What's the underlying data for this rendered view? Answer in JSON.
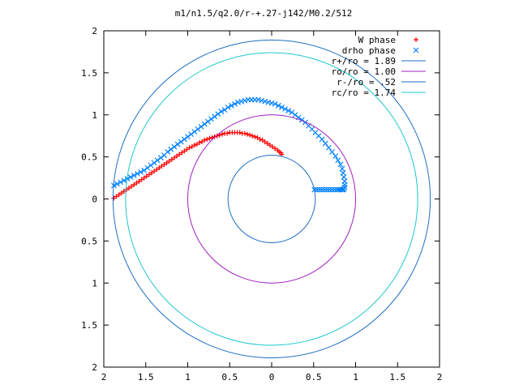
{
  "chart_data": {
    "type": "scatter",
    "title": "m1/n1.5/q2.0/r-+.27-j142/M0.2/512",
    "xlabel": "",
    "ylabel": "",
    "xlim": [
      -2,
      2
    ],
    "ylim": [
      -2,
      2
    ],
    "x_ticks": [
      {
        "value": -2,
        "label": "2"
      },
      {
        "value": -1.5,
        "label": "1.5"
      },
      {
        "value": -1,
        "label": "1"
      },
      {
        "value": -0.5,
        "label": "0.5"
      },
      {
        "value": 0,
        "label": "0"
      },
      {
        "value": 0.5,
        "label": "0.5"
      },
      {
        "value": 1,
        "label": "1"
      },
      {
        "value": 1.5,
        "label": "1.5"
      },
      {
        "value": 2,
        "label": "2"
      }
    ],
    "y_ticks": [
      {
        "value": 2,
        "label": "2"
      },
      {
        "value": 1.5,
        "label": "1.5"
      },
      {
        "value": 1,
        "label": "1"
      },
      {
        "value": 0.5,
        "label": "0.5"
      },
      {
        "value": 0,
        "label": "0"
      },
      {
        "value": -0.5,
        "label": "0.5"
      },
      {
        "value": -1,
        "label": "1"
      },
      {
        "value": -1.5,
        "label": "1.5"
      },
      {
        "value": -2,
        "label": "2"
      }
    ],
    "grid": false,
    "legend_position": "top-right",
    "series": [
      {
        "name": "W phase",
        "kind": "points",
        "marker": "plus",
        "color": "#ff0000",
        "x": [
          -1.88,
          -1.85,
          -1.82,
          -1.79,
          -1.76,
          -1.73,
          -1.7,
          -1.67,
          -1.64,
          -1.61,
          -1.58,
          -1.55,
          -1.52,
          -1.49,
          -1.46,
          -1.43,
          -1.4,
          -1.37,
          -1.34,
          -1.31,
          -1.28,
          -1.25,
          -1.22,
          -1.19,
          -1.16,
          -1.13,
          -1.1,
          -1.07,
          -1.04,
          -1.01,
          -0.98,
          -0.95,
          -0.92,
          -0.89,
          -0.86,
          -0.83,
          -0.8,
          -0.77,
          -0.74,
          -0.71,
          -0.68,
          -0.65,
          -0.62,
          -0.59,
          -0.56,
          -0.53,
          -0.5,
          -0.47,
          -0.44,
          -0.41,
          -0.38,
          -0.35,
          -0.32,
          -0.29,
          -0.26,
          -0.23,
          -0.2,
          -0.17,
          -0.14,
          -0.11,
          -0.08,
          -0.05,
          -0.02,
          0.01,
          0.04,
          0.07,
          0.09,
          0.11,
          0.12
        ],
        "y": [
          0.01,
          0.03,
          0.05,
          0.07,
          0.09,
          0.11,
          0.13,
          0.15,
          0.17,
          0.19,
          0.21,
          0.23,
          0.25,
          0.27,
          0.29,
          0.31,
          0.33,
          0.35,
          0.37,
          0.39,
          0.41,
          0.43,
          0.45,
          0.47,
          0.49,
          0.51,
          0.53,
          0.55,
          0.57,
          0.59,
          0.61,
          0.62,
          0.64,
          0.65,
          0.67,
          0.68,
          0.7,
          0.71,
          0.72,
          0.73,
          0.74,
          0.75,
          0.76,
          0.77,
          0.78,
          0.78,
          0.79,
          0.79,
          0.79,
          0.79,
          0.79,
          0.78,
          0.78,
          0.77,
          0.76,
          0.75,
          0.74,
          0.73,
          0.71,
          0.7,
          0.68,
          0.66,
          0.64,
          0.62,
          0.6,
          0.58,
          0.56,
          0.55,
          0.53
        ]
      },
      {
        "name": "drho phase",
        "kind": "points",
        "marker": "cross",
        "color": "#0080ff",
        "x": [
          -1.88,
          -1.84,
          -1.8,
          -1.76,
          -1.72,
          -1.68,
          -1.64,
          -1.6,
          -1.56,
          -1.52,
          -1.48,
          -1.44,
          -1.4,
          -1.36,
          -1.32,
          -1.28,
          -1.24,
          -1.2,
          -1.16,
          -1.12,
          -1.08,
          -1.04,
          -1.0,
          -0.96,
          -0.92,
          -0.88,
          -0.84,
          -0.8,
          -0.76,
          -0.72,
          -0.68,
          -0.64,
          -0.6,
          -0.56,
          -0.52,
          -0.48,
          -0.44,
          -0.4,
          -0.36,
          -0.32,
          -0.28,
          -0.24,
          -0.2,
          -0.16,
          -0.12,
          -0.08,
          -0.04,
          0.0,
          0.04,
          0.08,
          0.12,
          0.16,
          0.2,
          0.24,
          0.28,
          0.32,
          0.36,
          0.4,
          0.44,
          0.48,
          0.52,
          0.56,
          0.6,
          0.64,
          0.68,
          0.72,
          0.76,
          0.79,
          0.82,
          0.84,
          0.85,
          0.86,
          0.87,
          0.87,
          0.87,
          0.86,
          0.85,
          0.84,
          0.82,
          0.8,
          0.78,
          0.75,
          0.72,
          0.69,
          0.66,
          0.63,
          0.6,
          0.57,
          0.54,
          0.51
        ],
        "y": [
          0.16,
          0.18,
          0.2,
          0.22,
          0.24,
          0.26,
          0.28,
          0.3,
          0.32,
          0.34,
          0.37,
          0.4,
          0.43,
          0.46,
          0.49,
          0.52,
          0.56,
          0.59,
          0.62,
          0.65,
          0.68,
          0.71,
          0.74,
          0.77,
          0.8,
          0.83,
          0.86,
          0.89,
          0.92,
          0.95,
          0.98,
          1.01,
          1.04,
          1.06,
          1.09,
          1.11,
          1.13,
          1.15,
          1.16,
          1.17,
          1.18,
          1.18,
          1.18,
          1.18,
          1.17,
          1.16,
          1.15,
          1.14,
          1.13,
          1.11,
          1.09,
          1.07,
          1.05,
          1.03,
          1.0,
          0.97,
          0.94,
          0.91,
          0.87,
          0.83,
          0.79,
          0.75,
          0.71,
          0.66,
          0.61,
          0.56,
          0.51,
          0.46,
          0.41,
          0.36,
          0.31,
          0.26,
          0.21,
          0.17,
          0.14,
          0.12,
          0.11,
          0.11,
          0.11,
          0.11,
          0.11,
          0.11,
          0.11,
          0.11,
          0.11,
          0.11,
          0.11,
          0.11,
          0.11,
          0.11
        ]
      },
      {
        "name": "r+/ro = 1.89",
        "kind": "circle",
        "radius": 1.89,
        "color": "#1d6fc4"
      },
      {
        "name": "ro/ro = 1.00",
        "kind": "circle",
        "radius": 1.0,
        "color": "#a020c0"
      },
      {
        "name": "r-/ro = .52",
        "kind": "circle",
        "radius": 0.52,
        "color": "#1d6fc4"
      },
      {
        "name": "rc/ro = 1.74",
        "kind": "circle",
        "radius": 1.74,
        "color": "#20c8d0"
      }
    ]
  }
}
